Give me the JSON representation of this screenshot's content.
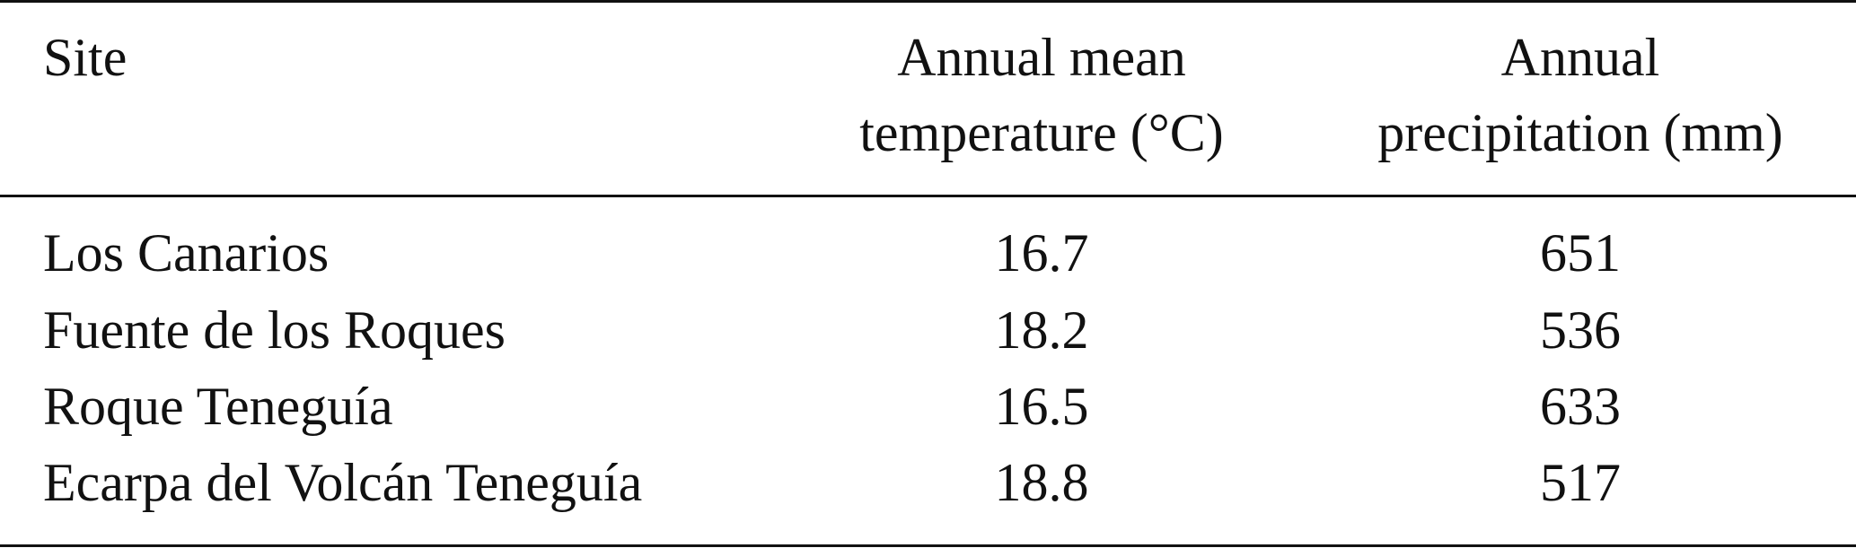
{
  "table": {
    "headers": {
      "site": "Site",
      "temperature_line1": "Annual mean",
      "temperature_line2": "temperature (°C)",
      "precipitation_line1": "Annual",
      "precipitation_line2": "precipitation (mm)"
    },
    "rows": [
      {
        "site": "Los Canarios",
        "temperature": "16.7",
        "precipitation": "651"
      },
      {
        "site": "Fuente de los Roques",
        "temperature": "18.2",
        "precipitation": "536"
      },
      {
        "site": "Roque Teneguía",
        "temperature": "16.5",
        "precipitation": "633"
      },
      {
        "site": "Ecarpa del Volcán Teneguía",
        "temperature": "18.8",
        "precipitation": "517"
      }
    ]
  }
}
